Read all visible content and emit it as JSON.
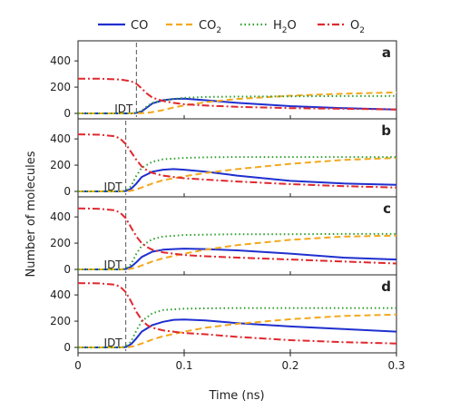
{
  "chart_data": {
    "type": "line",
    "title": "",
    "xlabel": "Time (ns)",
    "ylabel": "Number of molecules",
    "xlim": [
      0,
      0.3
    ],
    "ylim": [
      0,
      470
    ],
    "x_ticks": [
      "0",
      "0.1",
      "0.2",
      "0.3"
    ],
    "y_ticks": [
      "0",
      "200",
      "400"
    ],
    "annotation_label": "IDT",
    "legend_placement": "top",
    "legend": [
      {
        "name": "CO",
        "sub": "",
        "color": "#1f2fcf",
        "dash": "solid"
      },
      {
        "name": "CO",
        "sub": "2",
        "color": "#f4a81d",
        "dash": "dashed"
      },
      {
        "name": "H",
        "sub": "2",
        "suffix": "O",
        "color": "#2e9e2e",
        "dash": "dotted"
      },
      {
        "name": "O",
        "sub": "2",
        "color": "#e0282e",
        "dash": "dashdot"
      }
    ],
    "panels": [
      {
        "label": "a",
        "idt": 0.055,
        "series": [
          {
            "key": "CO",
            "x": [
              0,
              0.05,
              0.055,
              0.06,
              0.065,
              0.07,
              0.08,
              0.09,
              0.1,
              0.12,
              0.15,
              0.2,
              0.25,
              0.3
            ],
            "y": [
              0,
              0,
              3,
              15,
              45,
              75,
              100,
              110,
              112,
              100,
              80,
              55,
              40,
              30
            ]
          },
          {
            "key": "CO2",
            "x": [
              0,
              0.05,
              0.055,
              0.06,
              0.065,
              0.07,
              0.08,
              0.09,
              0.1,
              0.12,
              0.15,
              0.2,
              0.25,
              0.3
            ],
            "y": [
              0,
              0,
              0,
              2,
              5,
              10,
              25,
              45,
              60,
              85,
              110,
              135,
              150,
              160
            ]
          },
          {
            "key": "H2O",
            "x": [
              0,
              0.05,
              0.055,
              0.06,
              0.065,
              0.07,
              0.08,
              0.09,
              0.1,
              0.12,
              0.15,
              0.2,
              0.25,
              0.3
            ],
            "y": [
              0,
              0,
              5,
              20,
              55,
              80,
              100,
              110,
              118,
              125,
              128,
              130,
              132,
              133
            ]
          },
          {
            "key": "O2",
            "x": [
              0,
              0.02,
              0.04,
              0.05,
              0.055,
              0.06,
              0.065,
              0.07,
              0.08,
              0.09,
              0.1,
              0.12,
              0.15,
              0.2,
              0.25,
              0.3
            ],
            "y": [
              265,
              265,
              258,
              245,
              225,
              190,
              150,
              120,
              95,
              80,
              70,
              60,
              50,
              40,
              35,
              30
            ]
          }
        ]
      },
      {
        "label": "b",
        "idt": 0.045,
        "series": [
          {
            "key": "CO",
            "x": [
              0,
              0.04,
              0.045,
              0.05,
              0.055,
              0.06,
              0.07,
              0.08,
              0.09,
              0.1,
              0.12,
              0.15,
              0.2,
              0.25,
              0.3
            ],
            "y": [
              0,
              0,
              3,
              20,
              60,
              110,
              150,
              165,
              170,
              165,
              150,
              120,
              80,
              60,
              50
            ]
          },
          {
            "key": "CO2",
            "x": [
              0,
              0.045,
              0.05,
              0.055,
              0.06,
              0.07,
              0.08,
              0.1,
              0.12,
              0.15,
              0.2,
              0.25,
              0.3
            ],
            "y": [
              0,
              0,
              5,
              15,
              30,
              60,
              85,
              115,
              140,
              170,
              210,
              240,
              255
            ]
          },
          {
            "key": "H2O",
            "x": [
              0,
              0.04,
              0.045,
              0.05,
              0.055,
              0.06,
              0.07,
              0.08,
              0.1,
              0.12,
              0.15,
              0.2,
              0.25,
              0.3
            ],
            "y": [
              0,
              0,
              5,
              40,
              120,
              180,
              225,
              245,
              255,
              260,
              262,
              262,
              262,
              262
            ]
          },
          {
            "key": "O2",
            "x": [
              0,
              0.02,
              0.035,
              0.04,
              0.045,
              0.05,
              0.055,
              0.06,
              0.065,
              0.07,
              0.08,
              0.1,
              0.12,
              0.15,
              0.2,
              0.25,
              0.3
            ],
            "y": [
              435,
              432,
              420,
              400,
              360,
              300,
              240,
              190,
              160,
              140,
              120,
              100,
              90,
              75,
              55,
              40,
              30
            ]
          }
        ]
      },
      {
        "label": "c",
        "idt": 0.045,
        "series": [
          {
            "key": "CO",
            "x": [
              0,
              0.04,
              0.045,
              0.05,
              0.055,
              0.06,
              0.07,
              0.08,
              0.09,
              0.1,
              0.12,
              0.15,
              0.2,
              0.25,
              0.3
            ],
            "y": [
              0,
              0,
              3,
              20,
              55,
              95,
              135,
              150,
              155,
              158,
              155,
              145,
              120,
              90,
              75
            ]
          },
          {
            "key": "CO2",
            "x": [
              0,
              0.045,
              0.05,
              0.055,
              0.06,
              0.07,
              0.08,
              0.1,
              0.12,
              0.15,
              0.2,
              0.25,
              0.3
            ],
            "y": [
              0,
              0,
              5,
              15,
              30,
              60,
              85,
              120,
              150,
              185,
              225,
              250,
              258
            ]
          },
          {
            "key": "H2O",
            "x": [
              0,
              0.04,
              0.045,
              0.05,
              0.055,
              0.06,
              0.07,
              0.08,
              0.1,
              0.12,
              0.15,
              0.2,
              0.25,
              0.3
            ],
            "y": [
              0,
              0,
              5,
              40,
              120,
              180,
              230,
              250,
              262,
              265,
              268,
              268,
              270,
              270
            ]
          },
          {
            "key": "O2",
            "x": [
              0,
              0.02,
              0.035,
              0.04,
              0.045,
              0.05,
              0.055,
              0.06,
              0.065,
              0.07,
              0.08,
              0.1,
              0.12,
              0.15,
              0.2,
              0.25,
              0.3
            ],
            "y": [
              465,
              462,
              450,
              430,
              390,
              320,
              250,
              200,
              170,
              150,
              130,
              110,
              100,
              90,
              75,
              60,
              45
            ]
          }
        ]
      },
      {
        "label": "d",
        "idt": 0.045,
        "series": [
          {
            "key": "CO",
            "x": [
              0,
              0.04,
              0.045,
              0.05,
              0.055,
              0.06,
              0.07,
              0.08,
              0.09,
              0.1,
              0.12,
              0.15,
              0.2,
              0.25,
              0.3
            ],
            "y": [
              0,
              0,
              3,
              25,
              70,
              120,
              170,
              195,
              210,
              212,
              205,
              185,
              160,
              140,
              120
            ]
          },
          {
            "key": "CO2",
            "x": [
              0,
              0.045,
              0.05,
              0.055,
              0.06,
              0.07,
              0.08,
              0.1,
              0.12,
              0.15,
              0.2,
              0.25,
              0.3
            ],
            "y": [
              0,
              0,
              5,
              15,
              30,
              60,
              85,
              120,
              150,
              180,
              215,
              240,
              250
            ]
          },
          {
            "key": "H2O",
            "x": [
              0,
              0.04,
              0.045,
              0.05,
              0.055,
              0.06,
              0.07,
              0.08,
              0.1,
              0.12,
              0.15,
              0.2,
              0.25,
              0.3
            ],
            "y": [
              0,
              0,
              5,
              45,
              130,
              200,
              260,
              285,
              295,
              298,
              300,
              300,
              300,
              300
            ]
          },
          {
            "key": "O2",
            "x": [
              0,
              0.02,
              0.035,
              0.04,
              0.045,
              0.05,
              0.055,
              0.06,
              0.065,
              0.07,
              0.08,
              0.1,
              0.12,
              0.15,
              0.2,
              0.25,
              0.3
            ],
            "y": [
              490,
              488,
              478,
              460,
              420,
              350,
              270,
              210,
              170,
              150,
              130,
              110,
              100,
              80,
              55,
              40,
              30
            ]
          }
        ]
      }
    ]
  }
}
